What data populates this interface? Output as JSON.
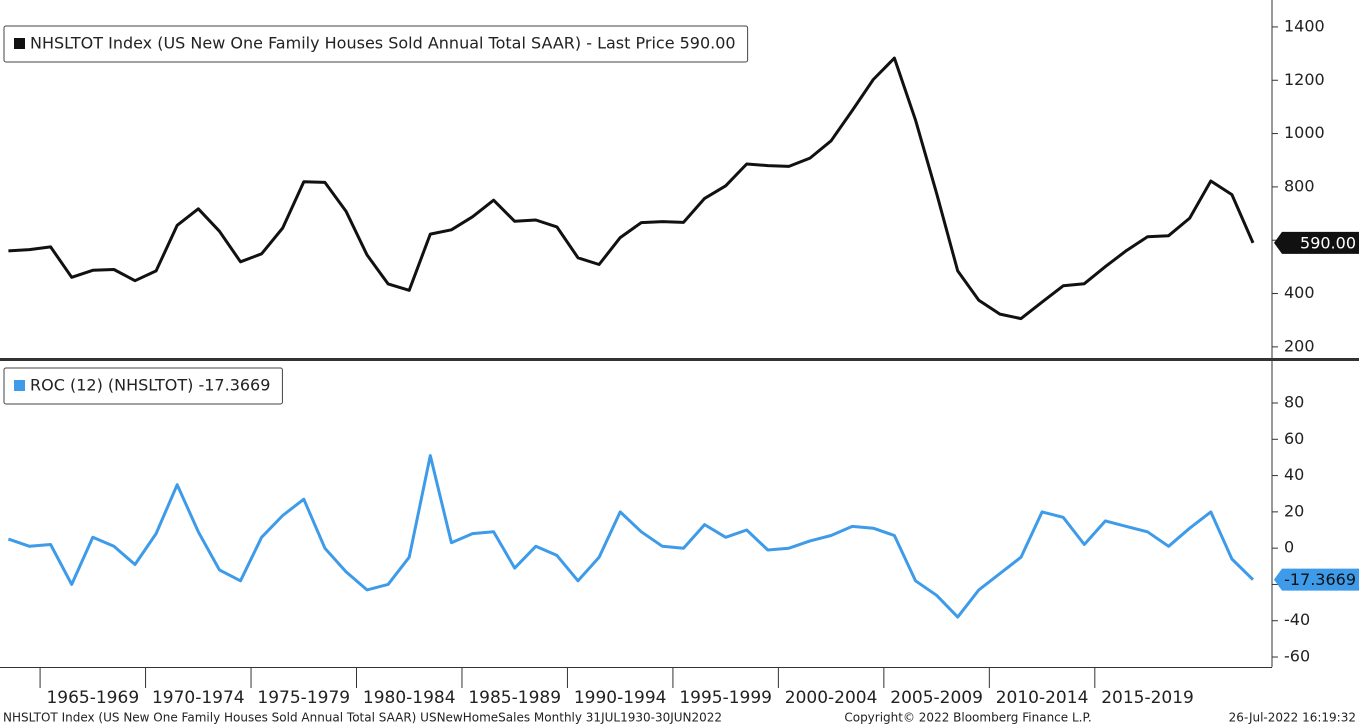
{
  "chart_data": [
    {
      "type": "line",
      "x": [
        1963.5,
        1964.5,
        1965.5,
        1966.5,
        1967.5,
        1968.5,
        1969.5,
        1970.5,
        1971.5,
        1972.5,
        1973.5,
        1974.5,
        1975.5,
        1976.5,
        1977.5,
        1978.5,
        1979.5,
        1980.5,
        1981.5,
        1982.5,
        1983.5,
        1984.5,
        1985.5,
        1986.5,
        1987.5,
        1988.5,
        1989.5,
        1990.5,
        1991.5,
        1992.5,
        1993.5,
        1994.5,
        1995.5,
        1996.5,
        1997.5,
        1998.5,
        1999.5,
        2000.5,
        2001.5,
        2002.5,
        2003.5,
        2004.5,
        2005.5,
        2006.5,
        2007.5,
        2008.5,
        2009.5,
        2010.5,
        2011.5,
        2012.5,
        2013.5,
        2014.5,
        2015.5,
        2016.5,
        2017.5,
        2018.5,
        2019.5,
        2020.5,
        2021.5,
        2022.5
      ],
      "series": [
        {
          "name": "NHSLTOT Index (US New One Family Houses Sold Annual Total SAAR) - Last Price 590.00",
          "color": "#111111",
          "values": [
            560,
            565,
            575,
            461,
            487,
            490,
            448,
            485,
            656,
            718,
            634,
            519,
            549,
            646,
            819,
            817,
            709,
            545,
            436,
            412,
            623,
            639,
            688,
            750,
            671,
            676,
            650,
            534,
            509,
            610,
            666,
            670,
            667,
            757,
            804,
            886,
            880,
            877,
            908,
            973,
            1086,
            1203,
            1283,
            1051,
            776,
            485,
            375,
            323,
            306,
            368,
            429,
            437,
            501,
            561,
            613,
            617,
            683,
            822,
            771,
            590
          ],
          "value_labels": [
            null,
            null,
            null,
            null,
            null,
            null,
            null,
            null,
            null,
            null,
            null,
            null,
            null,
            null,
            null,
            null,
            null,
            null,
            null,
            null,
            null,
            null,
            null,
            null,
            null,
            null,
            null,
            null,
            null,
            null,
            null,
            null,
            null,
            null,
            null,
            null,
            null,
            null,
            null,
            null,
            null,
            null,
            null,
            null,
            null,
            null,
            null,
            null,
            null,
            null,
            null,
            null,
            null,
            null,
            null,
            null,
            null,
            null,
            null,
            "590.00"
          ]
        }
      ],
      "xlim": [
        1963.1,
        2023.4
      ],
      "ylim": [
        162,
        1501
      ],
      "yticks": [
        200,
        400,
        600,
        800,
        1000,
        1200,
        1400
      ]
    },
    {
      "type": "line",
      "x": [
        1963.5,
        1964.5,
        1965.5,
        1966.5,
        1967.5,
        1968.5,
        1969.5,
        1970.5,
        1971.5,
        1972.5,
        1973.5,
        1974.5,
        1975.5,
        1976.5,
        1977.5,
        1978.5,
        1979.5,
        1980.5,
        1981.5,
        1982.5,
        1983.5,
        1984.5,
        1985.5,
        1986.5,
        1987.5,
        1988.5,
        1989.5,
        1990.5,
        1991.5,
        1992.5,
        1993.5,
        1994.5,
        1995.5,
        1996.5,
        1997.5,
        1998.5,
        1999.5,
        2000.5,
        2001.5,
        2002.5,
        2003.5,
        2004.5,
        2005.5,
        2006.5,
        2007.5,
        2008.5,
        2009.5,
        2010.5,
        2011.5,
        2012.5,
        2013.5,
        2014.5,
        2015.5,
        2016.5,
        2017.5,
        2018.5,
        2019.5,
        2020.5,
        2021.5,
        2022.5
      ],
      "series": [
        {
          "name": "ROC (12) (NHSLTOT) -17.3669",
          "color": "#3d9be9",
          "values": [
            5,
            1,
            2,
            -20,
            6,
            1,
            -9,
            8,
            35,
            9,
            -12,
            -18,
            6,
            18,
            27,
            0,
            -13,
            -23,
            -20,
            -5,
            51,
            3,
            8,
            9,
            -11,
            1,
            -4,
            -18,
            -5,
            20,
            9,
            1,
            0,
            13,
            6,
            10,
            -1,
            0,
            4,
            7,
            12,
            11,
            7,
            -18,
            -26,
            -38,
            -23,
            -14,
            -5,
            20,
            17,
            2,
            15,
            12,
            9,
            1,
            11,
            20,
            -6,
            -17.3669
          ],
          "value_labels": [
            null,
            null,
            null,
            null,
            null,
            null,
            null,
            null,
            null,
            null,
            null,
            null,
            null,
            null,
            null,
            null,
            null,
            null,
            null,
            null,
            null,
            null,
            null,
            null,
            null,
            null,
            null,
            null,
            null,
            null,
            null,
            null,
            null,
            null,
            null,
            null,
            null,
            null,
            null,
            null,
            null,
            null,
            null,
            null,
            null,
            null,
            null,
            null,
            null,
            null,
            null,
            null,
            null,
            null,
            null,
            null,
            null,
            null,
            null,
            "-17.3669"
          ]
        }
      ],
      "xlim": [
        1963.1,
        2023.4
      ],
      "ylim": [
        -65.5,
        102.6
      ],
      "yticks": [
        -60,
        -40,
        -20,
        0,
        20,
        40,
        60,
        80
      ],
      "xticks": [
        {
          "value": 1965,
          "label": "1965-1969"
        },
        {
          "value": 1970,
          "label": "1970-1974"
        },
        {
          "value": 1975,
          "label": "1975-1979"
        },
        {
          "value": 1980,
          "label": "1980-1984"
        },
        {
          "value": 1985,
          "label": "1985-1989"
        },
        {
          "value": 1990,
          "label": "1990-1994"
        },
        {
          "value": 1995,
          "label": "1995-1999"
        },
        {
          "value": 2000,
          "label": "2000-2004"
        },
        {
          "value": 2005,
          "label": "2005-2009"
        },
        {
          "value": 2010,
          "label": "2010-2014"
        },
        {
          "value": 2015,
          "label": "2015-2019"
        }
      ]
    }
  ],
  "footer": {
    "left": "NHSLTOT Index (US New One Family Houses Sold Annual Total SAAR) USNewHomeSales  Monthly 31JUL1930-30JUN2022",
    "center": "Copyright© 2022 Bloomberg Finance L.P.",
    "right": "26-Jul-2022 16:19:32"
  }
}
